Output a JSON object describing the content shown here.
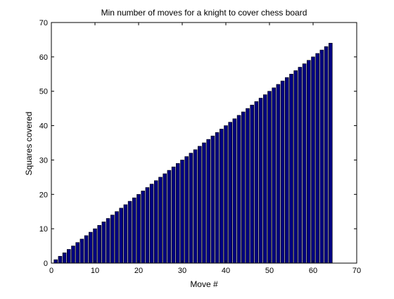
{
  "chart_data": {
    "type": "bar",
    "title": "Min number of moves for a knight to cover chess board",
    "xlabel": "Move #",
    "ylabel": "Squares covered",
    "xlim": [
      0,
      70
    ],
    "ylim": [
      0,
      70
    ],
    "xticks": [
      0,
      10,
      20,
      30,
      40,
      50,
      60,
      70
    ],
    "yticks": [
      0,
      10,
      20,
      30,
      40,
      50,
      60,
      70
    ],
    "grid": false,
    "bar_color": "#000080",
    "bar_edge_color": "#000000",
    "x": [
      1,
      2,
      3,
      4,
      5,
      6,
      7,
      8,
      9,
      10,
      11,
      12,
      13,
      14,
      15,
      16,
      17,
      18,
      19,
      20,
      21,
      22,
      23,
      24,
      25,
      26,
      27,
      28,
      29,
      30,
      31,
      32,
      33,
      34,
      35,
      36,
      37,
      38,
      39,
      40,
      41,
      42,
      43,
      44,
      45,
      46,
      47,
      48,
      49,
      50,
      51,
      52,
      53,
      54,
      55,
      56,
      57,
      58,
      59,
      60,
      61,
      62,
      63,
      64
    ],
    "values": [
      1,
      2,
      3,
      4,
      5,
      6,
      7,
      8,
      9,
      10,
      11,
      12,
      13,
      14,
      15,
      16,
      17,
      18,
      19,
      20,
      21,
      22,
      23,
      24,
      25,
      26,
      27,
      28,
      29,
      30,
      31,
      32,
      33,
      34,
      35,
      36,
      37,
      38,
      39,
      40,
      41,
      42,
      43,
      44,
      45,
      46,
      47,
      48,
      49,
      50,
      51,
      52,
      53,
      54,
      55,
      56,
      57,
      58,
      59,
      60,
      61,
      62,
      63,
      64
    ]
  }
}
